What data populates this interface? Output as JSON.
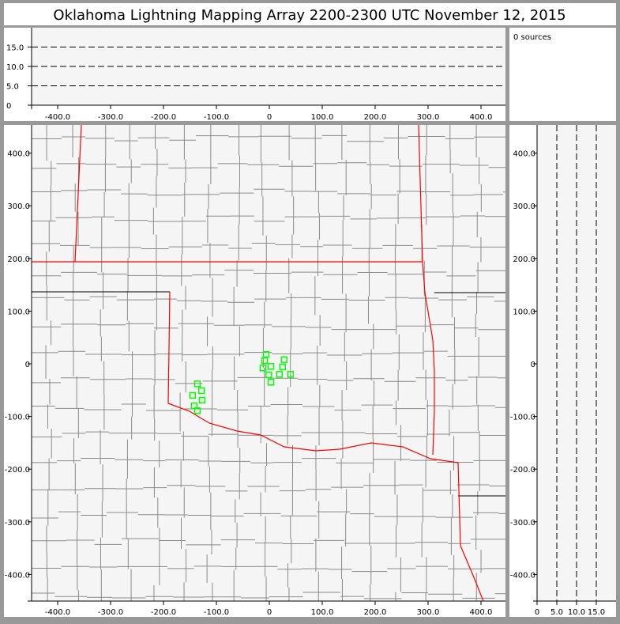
{
  "title": "Oklahoma Lightning Mapping Array   2200-2300 UTC  November 12, 2015",
  "source_count_label": "0 sources",
  "colors": {
    "background": "#999999",
    "plot": "#f5f5f5",
    "state_border": "#ff0000",
    "county": "#888888",
    "station": "#00ff00"
  },
  "chart_data": {
    "type": "scatter",
    "panels": {
      "altitude_vs_x": {
        "x_ticks": [
          "-400.0",
          "-300.0",
          "-200.0",
          "-100.0",
          "0",
          "100.0",
          "200.0",
          "300.0",
          "400.0"
        ],
        "y_ticks": [
          "0",
          "5.0",
          "10.0",
          "15.0"
        ],
        "xlim": [
          -450,
          450
        ],
        "ylim": [
          0,
          20
        ],
        "dashed_gridlines": [
          5,
          10,
          15
        ]
      },
      "plan_view": {
        "x_ticks": [
          "-400.0",
          "-300.0",
          "-200.0",
          "-100.0",
          "0",
          "100.0",
          "200.0",
          "300.0",
          "400.0"
        ],
        "y_ticks": [
          "400.0",
          "300.0",
          "200.0",
          "100.0",
          "0",
          "-100.0",
          "-200.0",
          "-300.0",
          "-400.0"
        ],
        "xlim": [
          -450,
          450
        ],
        "ylim": [
          -450,
          450
        ]
      },
      "altitude_vs_y": {
        "x_ticks": [
          "0",
          "5.0",
          "10.0",
          "15.0"
        ],
        "y_ticks": [
          "400.0",
          "300.0",
          "200.0",
          "100.0",
          "0",
          "-100.0",
          "-200.0",
          "-300.0",
          "-400.0"
        ],
        "xlim": [
          0,
          20
        ],
        "ylim": [
          -450,
          450
        ],
        "dashed_gridlines": [
          5,
          10,
          15
        ]
      }
    },
    "stations": [
      [
        -6,
        18
      ],
      [
        -9,
        6
      ],
      [
        -12,
        -8
      ],
      [
        3,
        -5
      ],
      [
        28,
        8
      ],
      [
        25,
        -6
      ],
      [
        -1,
        -21
      ],
      [
        19,
        -20
      ],
      [
        40,
        -20
      ],
      [
        3,
        -35
      ],
      [
        -136,
        -38
      ],
      [
        -128,
        -51
      ],
      [
        -145,
        -60
      ],
      [
        -127,
        -69
      ],
      [
        -142,
        -80
      ],
      [
        -136,
        -89
      ]
    ],
    "sources": []
  }
}
